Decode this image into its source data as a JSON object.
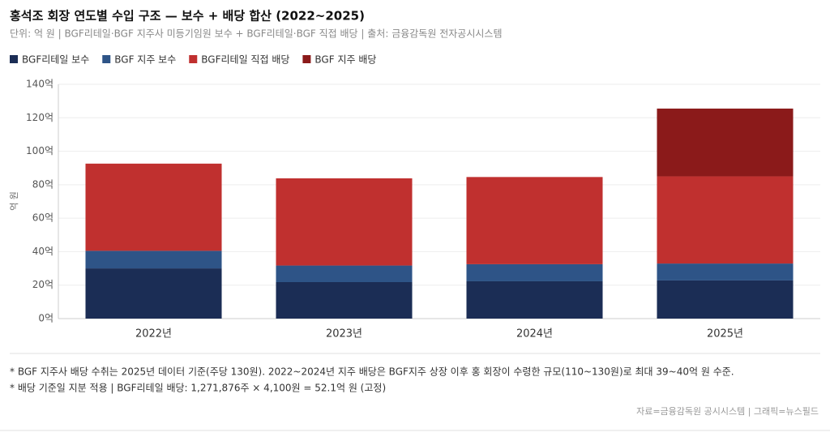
{
  "chart_data": {
    "type": "bar",
    "stacked": true,
    "title": "홍석조 회장 연도별 수입 구조 — 보수 + 배당 합산 (2022~2025)",
    "subtitle": "단위: 억 원 | BGF리테일·BGF 지주사 미등기임원 보수 + BGF리테일·BGF 직접 배당 | 출처: 금융감독원 전자공시시스템",
    "y_label": "억 원",
    "categories": [
      "2022년",
      "2023년",
      "2024년",
      "2025년"
    ],
    "series": [
      {
        "name": "BGF리테일 보수",
        "color": "#1b2d55",
        "values": [
          30.0,
          21.8,
          22.3,
          22.8
        ]
      },
      {
        "name": "BGF 지주 보수",
        "color": "#2e5487",
        "values": [
          10.5,
          9.9,
          10.2,
          10.1
        ]
      },
      {
        "name": "BGF리테일 직접 배당",
        "color": "#c0302f",
        "values": [
          52.1,
          52.1,
          52.1,
          52.1
        ]
      },
      {
        "name": "BGF 지주 배당",
        "color": "#8b1a1a",
        "values": [
          0,
          0,
          0,
          40.5
        ]
      }
    ],
    "ylim": [
      0,
      140
    ],
    "yticks": [
      {
        "value": 0,
        "label": "0억"
      },
      {
        "value": 20,
        "label": "20억"
      },
      {
        "value": 40,
        "label": "40억"
      },
      {
        "value": 60,
        "label": "60억"
      },
      {
        "value": 80,
        "label": "80억"
      },
      {
        "value": 100,
        "label": "100억"
      },
      {
        "value": 120,
        "label": "120억"
      },
      {
        "value": 140,
        "label": "140억"
      }
    ],
    "grid": true,
    "legend": "top-left",
    "notes": [
      "* BGF 지주사 배당 수취는 2025년 데이터 기준(주당 130원). 2022~2024년 지주 배당은 BGF지주 상장 이후 홍 회장이 수령한 규모(110~130원)로 최대 39~40억 원 수준.",
      "* 배당 기준일 지분 적용 | BGF리테일 배당: 1,271,876주 × 4,100원 = 52.1억 원 (고정)"
    ],
    "source": "자료=금융감독원 공시시스템  |  그래픽=뉴스필드"
  }
}
